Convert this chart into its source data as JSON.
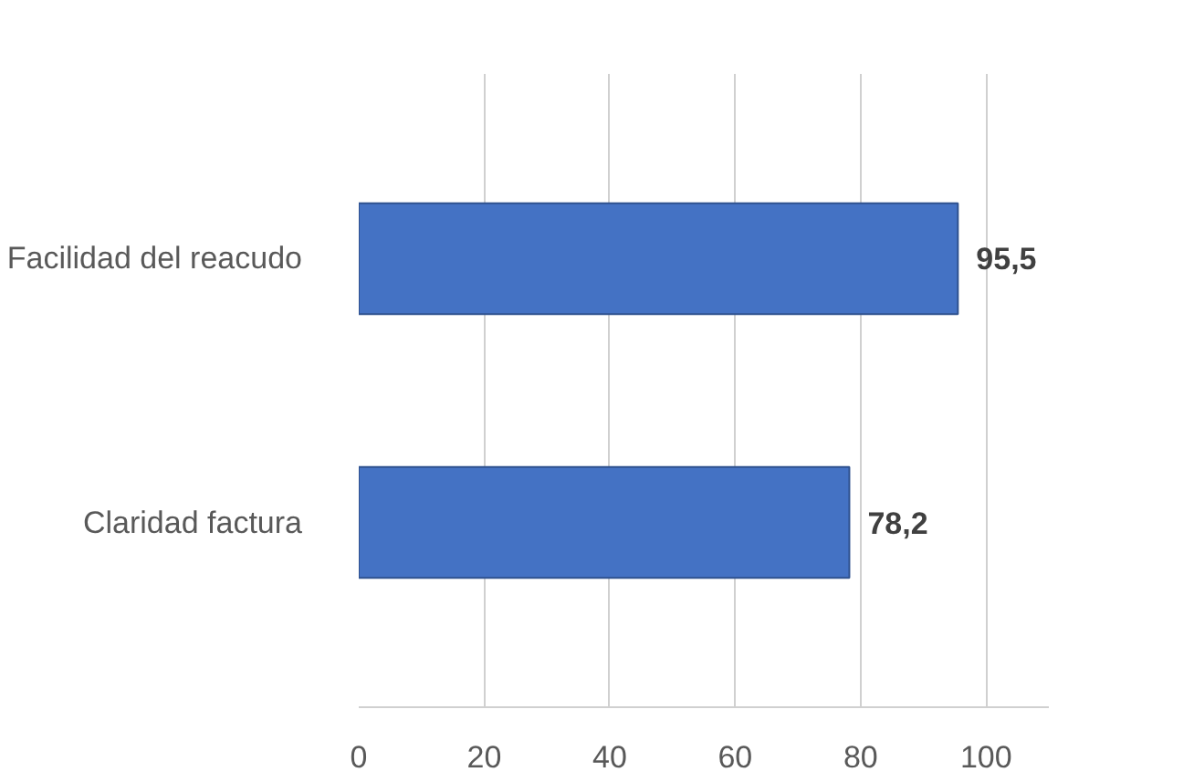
{
  "chart_data": {
    "type": "bar",
    "orientation": "horizontal",
    "categories": [
      "Facilidad del reacudo",
      "Claridad factura"
    ],
    "values": [
      95.5,
      78.2
    ],
    "value_labels": [
      "95,5",
      "78,2"
    ],
    "color": "#4472c4",
    "xlim": [
      0,
      110
    ],
    "xticks": [
      0,
      20,
      40,
      60,
      80,
      100
    ],
    "grid": "x"
  }
}
